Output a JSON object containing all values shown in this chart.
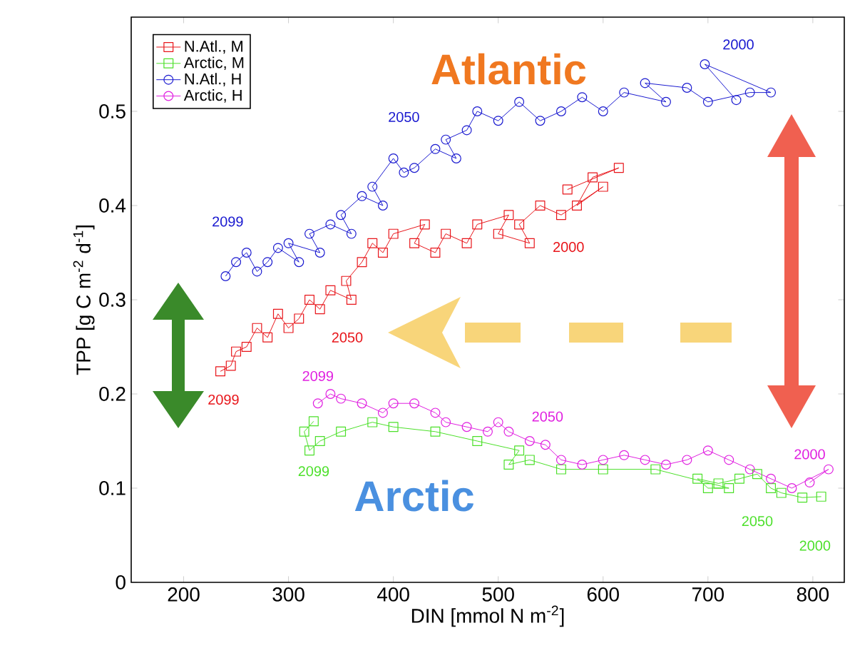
{
  "chart_data": {
    "type": "line",
    "xlabel": "DIN [mmol N m$^{-2}$]",
    "ylabel": "TPP [g C m$^{-2}$ d$^{-1}$]",
    "xlim": [
      150,
      830
    ],
    "ylim": [
      0,
      0.6
    ],
    "xticks": [
      200,
      300,
      400,
      500,
      600,
      700,
      800
    ],
    "yticks": [
      0,
      0.1,
      0.2,
      0.3,
      0.4,
      0.5
    ],
    "legend": "top left",
    "series": [
      {
        "name": "N.Atl., M",
        "color": "#e8161b",
        "marker": "square",
        "x": [
          566,
          615,
          590,
          575,
          600,
          560,
          540,
          520,
          530,
          500,
          510,
          480,
          470,
          450,
          440,
          420,
          430,
          400,
          390,
          380,
          370,
          355,
          360,
          340,
          330,
          320,
          310,
          300,
          290,
          280,
          270,
          260,
          250,
          245,
          235
        ],
        "values": [
          0.417,
          0.44,
          0.43,
          0.4,
          0.42,
          0.39,
          0.4,
          0.38,
          0.36,
          0.37,
          0.39,
          0.38,
          0.36,
          0.37,
          0.35,
          0.36,
          0.38,
          0.37,
          0.35,
          0.36,
          0.34,
          0.32,
          0.3,
          0.31,
          0.29,
          0.3,
          0.28,
          0.27,
          0.285,
          0.26,
          0.27,
          0.25,
          0.245,
          0.23,
          0.224
        ]
      },
      {
        "name": "Arctic, M",
        "color": "#4ce02a",
        "marker": "square",
        "x": [
          808,
          790,
          770,
          760,
          747,
          730,
          710,
          690,
          700,
          720,
          650,
          600,
          560,
          530,
          510,
          520,
          480,
          440,
          400,
          380,
          350,
          330,
          320,
          315,
          324
        ],
        "values": [
          0.091,
          0.09,
          0.095,
          0.1,
          0.115,
          0.11,
          0.105,
          0.11,
          0.1,
          0.1,
          0.12,
          0.12,
          0.12,
          0.13,
          0.125,
          0.14,
          0.15,
          0.16,
          0.165,
          0.17,
          0.16,
          0.15,
          0.14,
          0.16,
          0.171
        ]
      },
      {
        "name": "N.Atl., H",
        "color": "#1b1bd0",
        "marker": "circle",
        "x": [
          727,
          697,
          760,
          740,
          700,
          680,
          640,
          660,
          620,
          600,
          580,
          560,
          540,
          520,
          500,
          480,
          470,
          450,
          460,
          440,
          420,
          410,
          400,
          380,
          390,
          370,
          350,
          360,
          340,
          320,
          330,
          300,
          310,
          290,
          280,
          270,
          260,
          250,
          240
        ],
        "values": [
          0.512,
          0.55,
          0.52,
          0.52,
          0.51,
          0.525,
          0.53,
          0.51,
          0.52,
          0.5,
          0.515,
          0.5,
          0.49,
          0.51,
          0.49,
          0.5,
          0.48,
          0.47,
          0.45,
          0.46,
          0.44,
          0.435,
          0.45,
          0.42,
          0.4,
          0.41,
          0.39,
          0.37,
          0.38,
          0.37,
          0.35,
          0.36,
          0.34,
          0.355,
          0.34,
          0.33,
          0.35,
          0.34,
          0.325
        ]
      },
      {
        "name": "Arctic, H",
        "color": "#e020e0",
        "marker": "circle",
        "x": [
          797,
          815,
          780,
          760,
          740,
          720,
          700,
          680,
          660,
          640,
          620,
          600,
          580,
          560,
          545,
          530,
          510,
          500,
          490,
          470,
          450,
          440,
          420,
          400,
          390,
          370,
          350,
          340,
          328
        ],
        "values": [
          0.106,
          0.12,
          0.1,
          0.11,
          0.12,
          0.13,
          0.14,
          0.13,
          0.125,
          0.13,
          0.135,
          0.13,
          0.125,
          0.13,
          0.146,
          0.15,
          0.16,
          0.17,
          0.16,
          0.165,
          0.17,
          0.18,
          0.19,
          0.19,
          0.18,
          0.19,
          0.195,
          0.2,
          0.19
        ]
      }
    ],
    "annotations": [
      "Atlantic",
      "Arctic",
      "2000",
      "2050",
      "2099",
      "2000",
      "2050",
      "2099",
      "2000",
      "2050",
      "2099",
      "2000",
      "2050",
      "2099"
    ]
  }
}
